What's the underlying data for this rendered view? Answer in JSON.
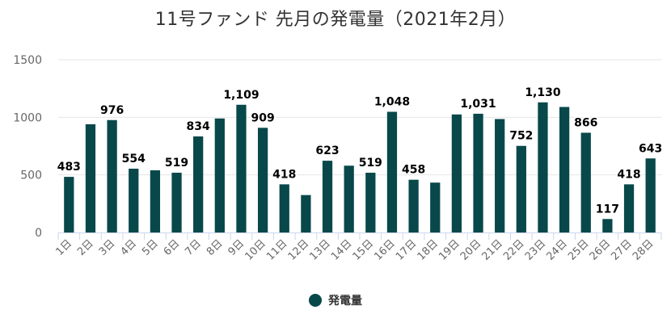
{
  "chart_data": {
    "type": "bar",
    "title": "11号ファンド 先月の発電量（2021年2月）",
    "categories": [
      "1日",
      "2日",
      "3日",
      "4日",
      "5日",
      "6日",
      "7日",
      "8日",
      "9日",
      "10日",
      "11日",
      "12日",
      "13日",
      "14日",
      "15日",
      "16日",
      "17日",
      "18日",
      "19日",
      "20日",
      "21日",
      "22日",
      "23日",
      "24日",
      "25日",
      "26日",
      "27日",
      "28日"
    ],
    "series": [
      {
        "name": "発電量",
        "values": [
          483,
          940,
          976,
          554,
          540,
          519,
          834,
          990,
          1109,
          909,
          418,
          325,
          623,
          580,
          519,
          1048,
          458,
          433,
          1025,
          1031,
          985,
          752,
          1130,
          1090,
          866,
          117,
          418,
          643
        ],
        "data_labels": [
          "483",
          "",
          "976",
          "554",
          "",
          "519",
          "834",
          "",
          "1,109",
          "909",
          "418",
          "",
          "623",
          "",
          "519",
          "1,048",
          "458",
          "",
          "",
          "1,031",
          "",
          "752",
          "1,130",
          "",
          "866",
          "117",
          "418",
          "643"
        ]
      }
    ],
    "yticks": [
      0,
      500,
      1000,
      1500
    ],
    "ylim": [
      0,
      1500
    ],
    "grid": true,
    "legend_position": "bottom-center",
    "colors": {
      "bar": "#08484a",
      "grid": "#e6e6e6",
      "axis": "#ccd6eb"
    }
  }
}
